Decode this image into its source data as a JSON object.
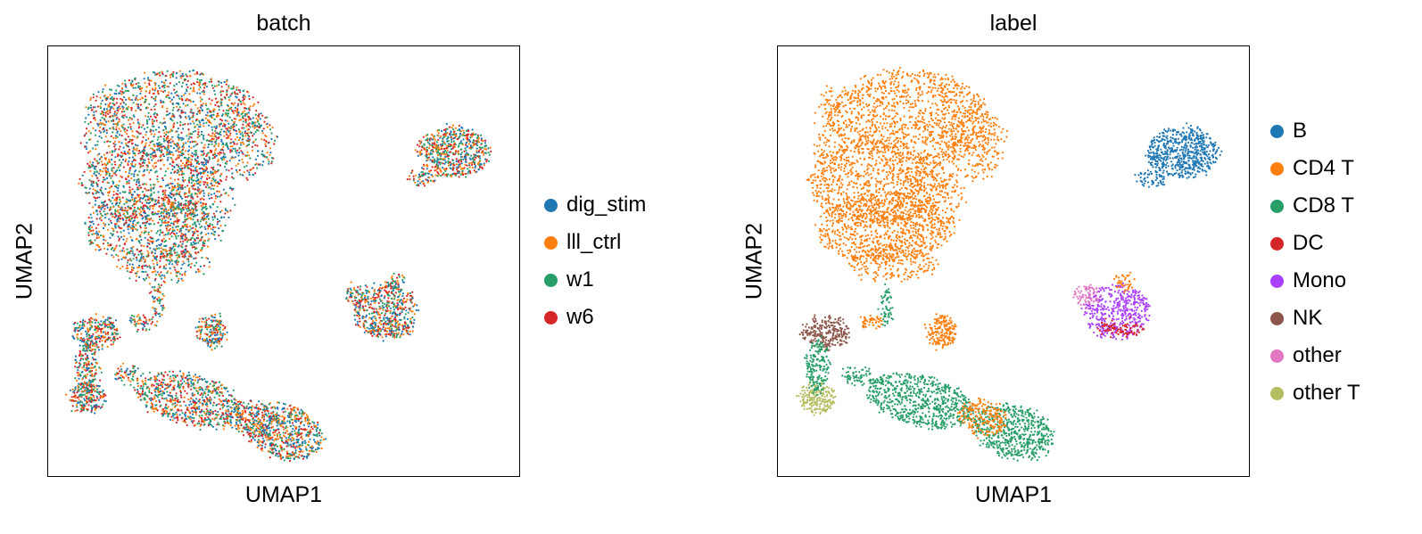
{
  "chart_data": [
    {
      "type": "scatter",
      "title": "batch",
      "xlabel": "UMAP1",
      "ylabel": "UMAP2",
      "xticks": [],
      "yticks": [],
      "grid": false,
      "legend_position": "right",
      "legend": [
        {
          "label": "dig_stim",
          "color": "#1f77b4"
        },
        {
          "label": "lll_ctrl",
          "color": "#ff7f0e"
        },
        {
          "label": "w1",
          "color": "#279e68"
        },
        {
          "label": "w6",
          "color": "#d62728"
        }
      ]
    },
    {
      "type": "scatter",
      "title": "label",
      "xlabel": "UMAP1",
      "ylabel": "UMAP2",
      "xticks": [],
      "yticks": [],
      "grid": false,
      "legend_position": "right",
      "legend": [
        {
          "label": "B",
          "color": "#1f77b4"
        },
        {
          "label": "CD4 T",
          "color": "#ff7f0e"
        },
        {
          "label": "CD8 T",
          "color": "#279e68"
        },
        {
          "label": "DC",
          "color": "#d62728"
        },
        {
          "label": "Mono",
          "color": "#aa40fc"
        },
        {
          "label": "NK",
          "color": "#8c564b"
        },
        {
          "label": "other",
          "color": "#e377c2"
        },
        {
          "label": "other T",
          "color": "#b5bd61"
        }
      ]
    }
  ]
}
